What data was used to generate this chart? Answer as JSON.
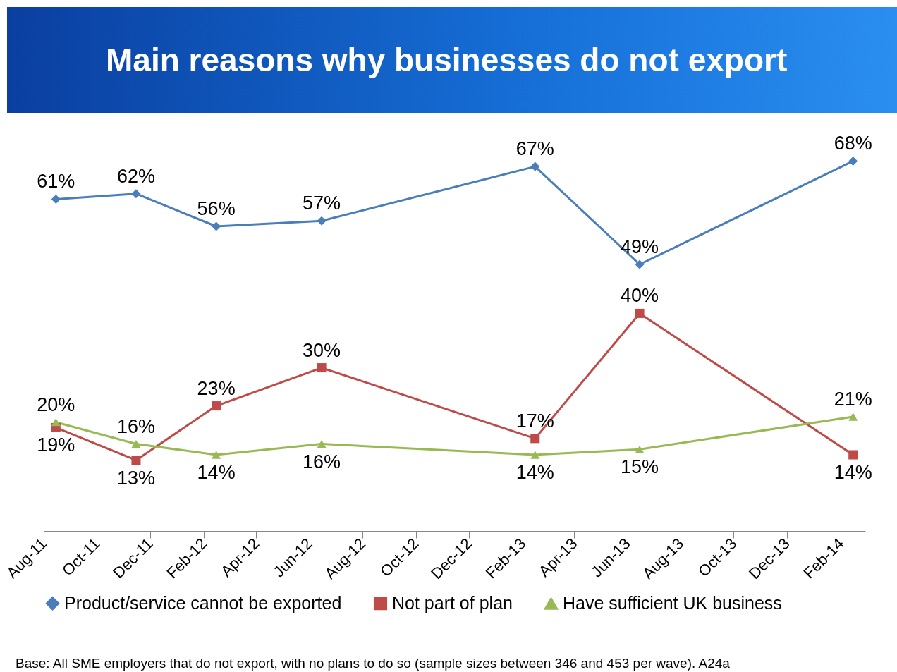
{
  "chart_data": {
    "type": "line",
    "title": "Main reasons why businesses do not export",
    "x": [
      "2011-08-15",
      "2011-11-15",
      "2012-02-15",
      "2012-06-15",
      "2013-02-15",
      "2013-06-15",
      "2014-02-15"
    ],
    "xlim": [
      "2011-08-01",
      "2014-03-01"
    ],
    "xticks": [
      {
        "value": "2011-08-01",
        "label": "Aug-11"
      },
      {
        "value": "2011-10-01",
        "label": "Oct-11"
      },
      {
        "value": "2011-12-01",
        "label": "Dec-11"
      },
      {
        "value": "2012-02-01",
        "label": "Feb-12"
      },
      {
        "value": "2012-04-01",
        "label": "Apr-12"
      },
      {
        "value": "2012-06-01",
        "label": "Jun-12"
      },
      {
        "value": "2012-08-01",
        "label": "Aug-12"
      },
      {
        "value": "2012-10-01",
        "label": "Oct-12"
      },
      {
        "value": "2012-12-01",
        "label": "Dec-12"
      },
      {
        "value": "2013-02-01",
        "label": "Feb-13"
      },
      {
        "value": "2013-04-01",
        "label": "Apr-13"
      },
      {
        "value": "2013-06-01",
        "label": "Jun-13"
      },
      {
        "value": "2013-08-01",
        "label": "Aug-13"
      },
      {
        "value": "2013-10-01",
        "label": "Oct-13"
      },
      {
        "value": "2013-12-01",
        "label": "Dec-13"
      },
      {
        "value": "2014-02-01",
        "label": "Feb-14"
      }
    ],
    "series": [
      {
        "name": "Product/service cannot be exported",
        "color": "#4a7ebb",
        "marker": "diamond",
        "values": [
          61,
          62,
          56,
          57,
          67,
          49,
          68
        ],
        "value_labels": [
          "61%",
          "62%",
          "56%",
          "57%",
          "67%",
          "49%",
          "68%"
        ]
      },
      {
        "name": "Not part of plan",
        "color": "#be4b48",
        "marker": "square",
        "values": [
          19,
          13,
          23,
          30,
          17,
          40,
          14
        ],
        "value_labels": [
          "19%",
          "13%",
          "23%",
          "30%",
          "17%",
          "40%",
          "14%"
        ]
      },
      {
        "name": "Have sufficient UK business",
        "color": "#98b954",
        "marker": "triangle",
        "values": [
          20,
          16,
          14,
          16,
          14,
          15,
          21
        ],
        "value_labels": [
          "20%",
          "16%",
          "14%",
          "16%",
          "14%",
          "15%",
          "21%"
        ]
      }
    ],
    "legend": "bottom",
    "grid": false,
    "tick_labels": "x",
    "annotations": [
      "Base: All SME employers that do not export, with no plans to do so (sample sizes between 346 and 453 per wave). A24a"
    ]
  }
}
